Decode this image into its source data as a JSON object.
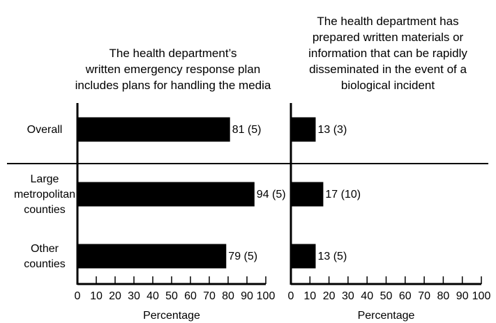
{
  "chart_data": [
    {
      "type": "bar",
      "orientation": "horizontal",
      "title": "The health department’s\nwritten emergency response plan\nincludes plans for handling the media",
      "categories": [
        "Overall",
        "Large\nmetropolitan\ncounties",
        "Other\ncounties"
      ],
      "values": [
        81,
        94,
        79
      ],
      "value_labels": [
        "81 (5)",
        "94 (5)",
        "79 (5)"
      ],
      "color": "#000000",
      "xlim": [
        0,
        100
      ],
      "xticks": [
        0,
        10,
        20,
        30,
        40,
        50,
        60,
        70,
        80,
        90,
        100
      ],
      "xlabel": "Percentage"
    },
    {
      "type": "bar",
      "orientation": "horizontal",
      "title": "The health department has\nprepared written materials or\ninformation that can be rapidly\ndisseminated in the event of a\nbiological incident",
      "values": [
        13,
        17,
        13
      ],
      "value_labels": [
        "13 (3)",
        "17 (10)",
        "13 (5)"
      ],
      "color": "#000000",
      "xlim": [
        0,
        100
      ],
      "xticks": [
        0,
        10,
        20,
        30,
        40,
        50,
        60,
        70,
        80,
        90,
        100
      ],
      "xlabel": "Percentage"
    }
  ]
}
